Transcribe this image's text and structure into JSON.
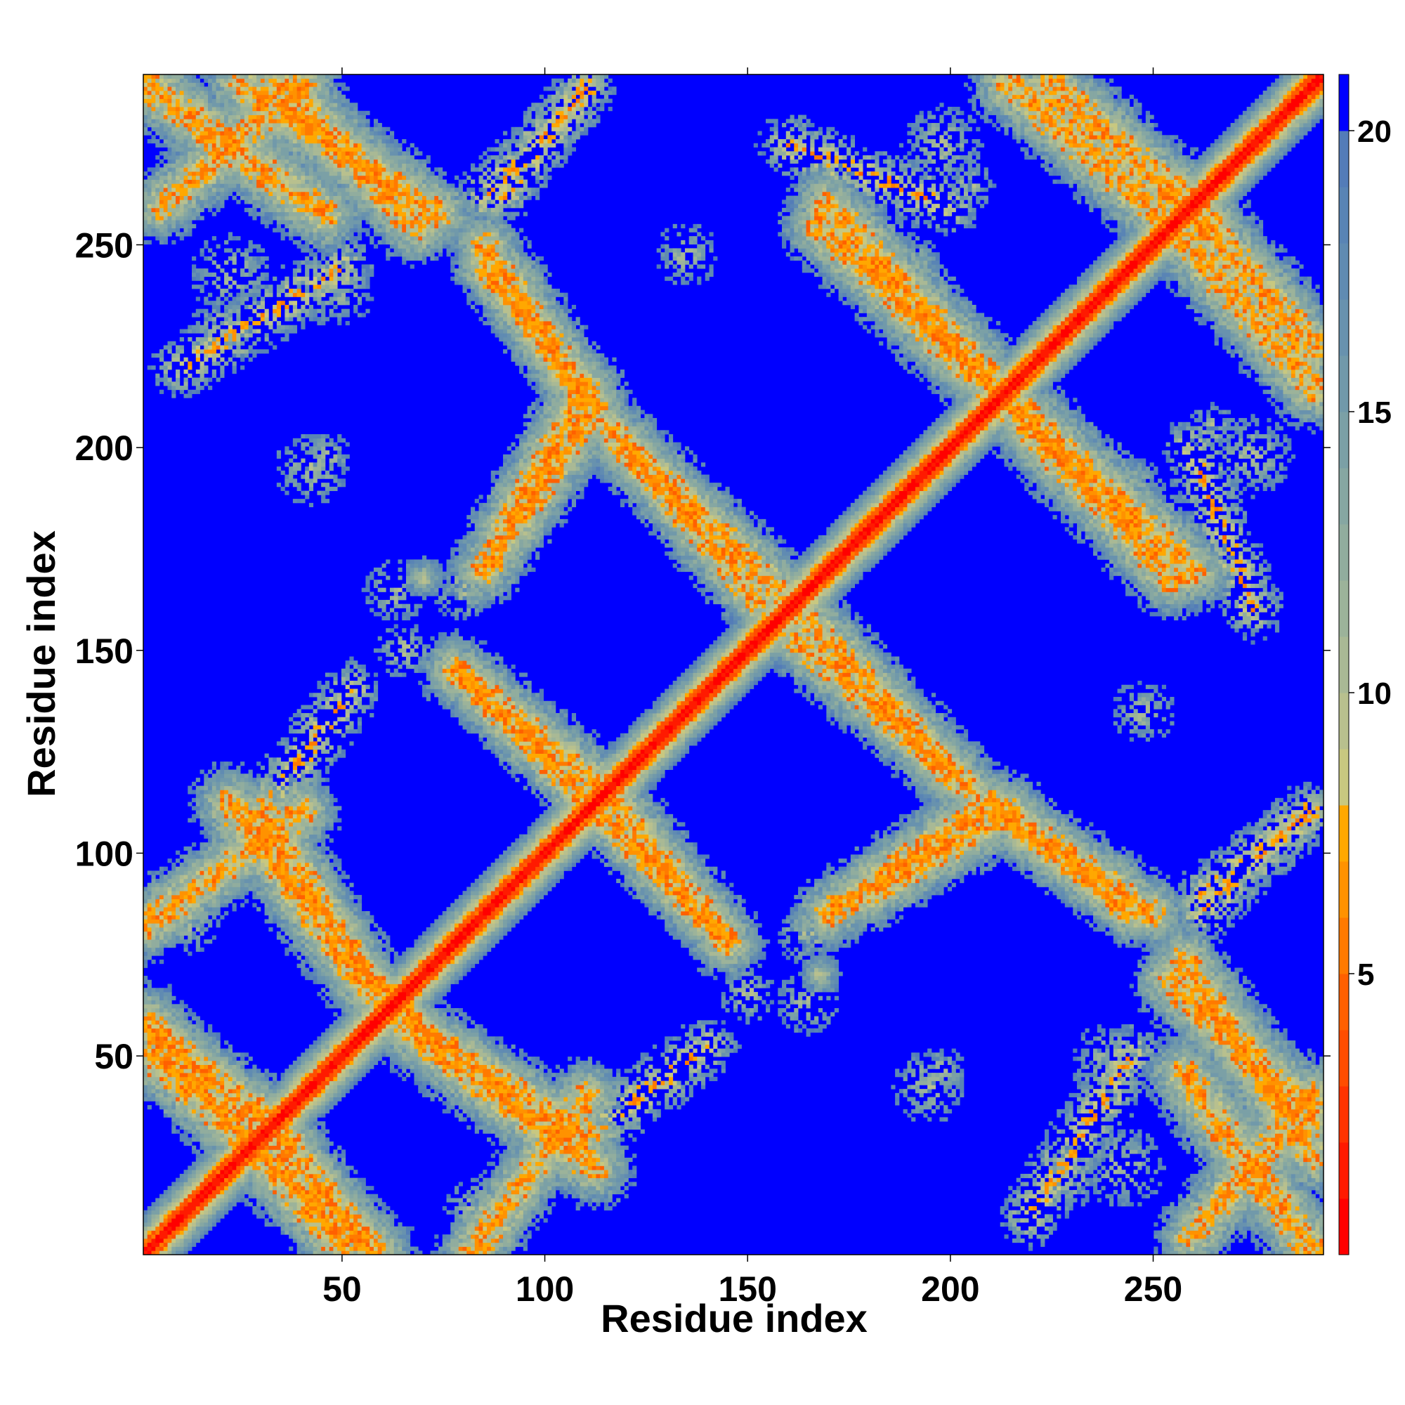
{
  "chart_data": {
    "type": "heatmap",
    "subtype": "contact-map",
    "title": "",
    "xlabel": "Residue index",
    "ylabel": "Residue index",
    "xlim": [
      1,
      292
    ],
    "ylim": [
      1,
      292
    ],
    "xticks": [
      50,
      100,
      150,
      200,
      250
    ],
    "yticks": [
      50,
      100,
      150,
      200,
      250
    ],
    "grid": false,
    "symmetric": true,
    "colorbar": {
      "location": "right",
      "range": [
        0,
        21
      ],
      "ticks": [
        5,
        10,
        15,
        20
      ],
      "levels": [
        {
          "from": 0,
          "to": 1,
          "color": "#ff0000"
        },
        {
          "from": 1,
          "to": 2,
          "color": "#ff1a00"
        },
        {
          "from": 2,
          "to": 3,
          "color": "#ff3300"
        },
        {
          "from": 3,
          "to": 4,
          "color": "#ff4d00"
        },
        {
          "from": 4,
          "to": 5,
          "color": "#ff6000"
        },
        {
          "from": 5,
          "to": 6,
          "color": "#ff7a00"
        },
        {
          "from": 6,
          "to": 7,
          "color": "#ff9200"
        },
        {
          "from": 7,
          "to": 8,
          "color": "#ffa800"
        },
        {
          "from": 8,
          "to": 9,
          "color": "#c8c880"
        },
        {
          "from": 9,
          "to": 10,
          "color": "#b8c08e"
        },
        {
          "from": 10,
          "to": 11,
          "color": "#a9b995"
        },
        {
          "from": 11,
          "to": 12,
          "color": "#9cb39a"
        },
        {
          "from": 12,
          "to": 13,
          "color": "#91ad9e"
        },
        {
          "from": 13,
          "to": 14,
          "color": "#86a7a2"
        },
        {
          "from": 14,
          "to": 15,
          "color": "#7ba0a6"
        },
        {
          "from": 15,
          "to": 16,
          "color": "#7199aa"
        },
        {
          "from": 16,
          "to": 17,
          "color": "#6892ae"
        },
        {
          "from": 17,
          "to": 18,
          "color": "#608bb2"
        },
        {
          "from": 18,
          "to": 19,
          "color": "#5984b5"
        },
        {
          "from": 19,
          "to": 20,
          "color": "#537cb8"
        },
        {
          "from": 20,
          "to": 21,
          "color": "#0000ff"
        }
      ]
    },
    "background_value": 21,
    "background_color": "#0000ff",
    "features": [
      {
        "kind": "diagonal",
        "from": 1,
        "to": 292,
        "core": 1.5,
        "mid": 4,
        "width": 10
      },
      {
        "kind": "band",
        "x": [
          1,
          45
        ],
        "y": [
          290,
          258
        ],
        "width": 11
      },
      {
        "kind": "band",
        "x": [
          25,
          73
        ],
        "y": [
          290,
          258
        ],
        "width": 11
      },
      {
        "kind": "band",
        "x": [
          1,
          50
        ],
        "y": [
          58,
          2
        ],
        "width": 11
      },
      {
        "kind": "band",
        "x": [
          28,
          57
        ],
        "y": [
          37,
          2
        ],
        "width": 10
      },
      {
        "kind": "band",
        "x": [
          30,
          58
        ],
        "y": [
          110,
          65
        ],
        "width": 10
      },
      {
        "kind": "band",
        "x": [
          1,
          40
        ],
        "y": [
          82,
          110
        ],
        "width": 10
      },
      {
        "kind": "band",
        "x": [
          30,
          52
        ],
        "y": [
          110,
          140
        ],
        "width": 8,
        "sparse": true
      },
      {
        "kind": "band",
        "x": [
          68,
          112
        ],
        "y": [
          55,
          22
        ],
        "width": 11
      },
      {
        "kind": "band",
        "x": [
          53,
          75
        ],
        "y": [
          74,
          52
        ],
        "width": 5
      },
      {
        "kind": "band",
        "x": [
          78,
          108
        ],
        "y": [
          145,
          115
        ],
        "width": 9
      },
      {
        "kind": "band",
        "x": [
          115,
          145
        ],
        "y": [
          115,
          78
        ],
        "width": 10
      },
      {
        "kind": "band",
        "x": [
          85,
          112
        ],
        "y": [
          170,
          210
        ],
        "width": 10
      },
      {
        "kind": "band",
        "x": [
          85,
          112
        ],
        "y": [
          250,
          210
        ],
        "width": 10
      },
      {
        "kind": "band",
        "x": [
          115,
          158
        ],
        "y": [
          205,
          165
        ],
        "width": 10
      },
      {
        "kind": "band",
        "x": [
          170,
          210
        ],
        "y": [
          260,
          217
        ],
        "width": 11
      },
      {
        "kind": "band",
        "x": [
          162,
          200
        ],
        "y": [
          153,
          120
        ],
        "width": 10
      },
      {
        "kind": "band",
        "x": [
          180,
          215
        ],
        "y": [
          90,
          110
        ],
        "width": 10
      },
      {
        "kind": "band",
        "x": [
          212,
          245
        ],
        "y": [
          110,
          85
        ],
        "width": 9
      },
      {
        "kind": "band",
        "x": [
          215,
          255
        ],
        "y": [
          210,
          168
        ],
        "width": 11
      },
      {
        "kind": "band",
        "x": [
          215,
          255
        ],
        "y": [
          290,
          255
        ],
        "width": 11
      },
      {
        "kind": "band",
        "x": [
          255,
          290
        ],
        "y": [
          265,
          225
        ],
        "width": 11
      },
      {
        "kind": "band",
        "x": [
          255,
          290
        ],
        "y": [
          68,
          35
        ],
        "width": 11
      },
      {
        "kind": "band",
        "x": [
          260,
          290
        ],
        "y": [
          5,
          40
        ],
        "width": 10
      },
      {
        "kind": "band",
        "x": [
          262,
          288
        ],
        "y": [
          85,
          110
        ],
        "width": 8,
        "sparse": true
      },
      {
        "kind": "band",
        "x": [
          90,
          110
        ],
        "y": [
          262,
          290
        ],
        "width": 7,
        "sparse": true
      },
      {
        "kind": "band",
        "x": [
          10,
          50
        ],
        "y": [
          220,
          245
        ],
        "width": 8,
        "sparse": true
      },
      {
        "kind": "band",
        "x": [
          160,
          200
        ],
        "y": [
          275,
          260
        ],
        "width": 8,
        "sparse": true
      },
      {
        "kind": "blob",
        "x": 22,
        "y": 243,
        "r": 10,
        "sparse": true
      },
      {
        "kind": "blob",
        "x": 46,
        "y": 198,
        "r": 6,
        "sparse": true
      },
      {
        "kind": "blob",
        "x": 63,
        "y": 165,
        "r": 8,
        "sparse": true
      },
      {
        "kind": "blob",
        "x": 80,
        "y": 168,
        "r": 6,
        "sparse": true
      },
      {
        "kind": "blob",
        "x": 165,
        "y": 80,
        "r": 8,
        "sparse": true
      },
      {
        "kind": "blob",
        "x": 168,
        "y": 70,
        "r": 5
      },
      {
        "kind": "blob",
        "x": 150,
        "y": 65,
        "r": 7,
        "sparse": true
      },
      {
        "kind": "blob",
        "x": 83,
        "y": 12,
        "r": 8,
        "sparse": true
      },
      {
        "kind": "blob",
        "x": 95,
        "y": 22,
        "r": 6,
        "sparse": true
      },
      {
        "kind": "blob",
        "x": 195,
        "y": 42,
        "r": 9,
        "sparse": true
      },
      {
        "kind": "blob",
        "x": 230,
        "y": 20,
        "r": 8,
        "sparse": true
      },
      {
        "kind": "blob",
        "x": 240,
        "y": 48,
        "r": 10,
        "sparse": true
      },
      {
        "kind": "blob",
        "x": 275,
        "y": 198,
        "r": 10,
        "sparse": true
      },
      {
        "kind": "blob",
        "x": 248,
        "y": 135,
        "r": 8,
        "sparse": true
      },
      {
        "kind": "blob",
        "x": 190,
        "y": 245,
        "r": 8,
        "sparse": true
      },
      {
        "kind": "blob",
        "x": 205,
        "y": 265,
        "r": 6,
        "sparse": true
      }
    ]
  }
}
